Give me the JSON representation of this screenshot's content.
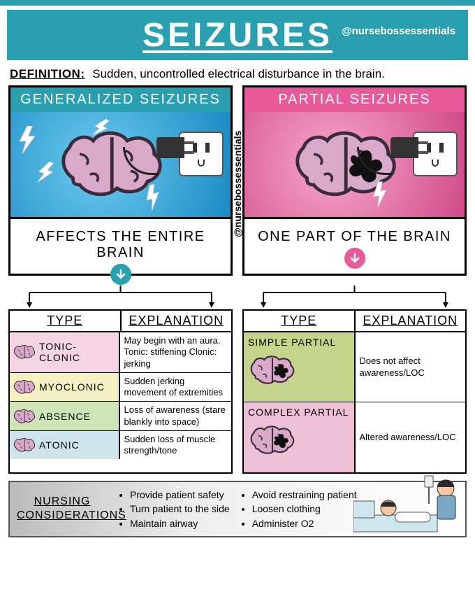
{
  "colors": {
    "teal": "#2a9fb0",
    "pink": "#e85b9a",
    "pink_light": "#f7b9d4",
    "blue_grad_a": "#1a8bc4",
    "blue_grad_b": "#6ecaf0",
    "pink_grad_a": "#d04a88",
    "pink_grad_b": "#f7a8cc",
    "brain_fill": "#d9a9c9",
    "brain_stroke": "#3a2a3a",
    "row_pink": "#f7d4e4",
    "row_yellow": "#f5f0c2",
    "row_green": "#cfe5b8",
    "row_blue": "#cfe3ec",
    "partial_green": "#c4d48a",
    "partial_pink": "#eec0d6",
    "black": "#000000",
    "white": "#ffffff"
  },
  "header": {
    "title": "SEIZURES",
    "handle": "@nursebossessentials"
  },
  "definition": {
    "label": "DEFINITION:",
    "text": "Sudden, uncontrolled electrical disturbance in the brain."
  },
  "side_handle": "@nursebossessentials",
  "generalized": {
    "title": "GENERALIZED  SEIZURES",
    "caption": "AFFECTS  THE  ENTIRE  BRAIN",
    "table": {
      "head_type": "TYPE",
      "head_exp": "EXPLANATION",
      "rows": [
        {
          "type": "TONIC-CLONIC",
          "exp": "May begin with an aura.\nTonic: stiffening\nClonic: jerking",
          "bg_key": "row_pink"
        },
        {
          "type": "MYOCLONIC",
          "exp": "Sudden jerking movement of extremities",
          "bg_key": "row_yellow"
        },
        {
          "type": "ABSENCE",
          "exp": "Loss of awareness (stare blankly into space)",
          "bg_key": "row_green"
        },
        {
          "type": "ATONIC",
          "exp": "Sudden loss of muscle strength/tone",
          "bg_key": "row_blue"
        }
      ]
    }
  },
  "partial": {
    "title": "PARTIAL  SEIZURES",
    "caption": "ONE  PART  OF  THE  BRAIN",
    "table": {
      "head_type": "TYPE",
      "head_exp": "EXPLANATION",
      "rows": [
        {
          "type": "SIMPLE  PARTIAL",
          "exp": "Does not affect awareness/LOC",
          "bg_key": "partial_green"
        },
        {
          "type": "COMPLEX  PARTIAL",
          "exp": "Altered awareness/LOC",
          "bg_key": "partial_pink"
        }
      ]
    }
  },
  "nursing": {
    "label": "NURSING CONSIDERATIONS",
    "col1": [
      "Provide patient safety",
      "Turn patient to the side",
      "Maintain airway"
    ],
    "col2": [
      "Avoid restraining patient",
      "Loosen clothing",
      "Administer O2"
    ]
  }
}
